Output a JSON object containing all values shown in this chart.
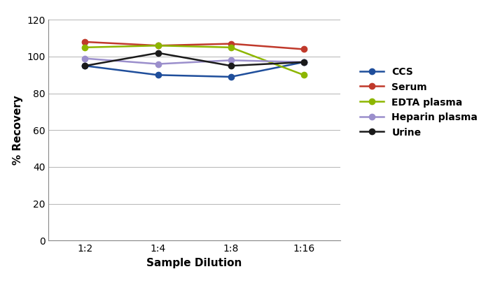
{
  "xlabel": "Sample Dilution",
  "ylabel": "% Recovery",
  "x_labels": [
    "1:2",
    "1:4",
    "1:8",
    "1:16"
  ],
  "x_positions": [
    0,
    1,
    2,
    3
  ],
  "series": [
    {
      "name": "CCS",
      "color": "#1F4E9B",
      "values": [
        95,
        90,
        89,
        97
      ]
    },
    {
      "name": "Serum",
      "color": "#C0392B",
      "values": [
        108,
        106,
        107,
        104
      ]
    },
    {
      "name": "EDTA plasma",
      "color": "#8DB600",
      "values": [
        105,
        106,
        105,
        90
      ]
    },
    {
      "name": "Heparin plasma",
      "color": "#9B8FCC",
      "values": [
        99,
        96,
        98,
        97
      ]
    },
    {
      "name": "Urine",
      "color": "#1A1A1A",
      "values": [
        95,
        102,
        95,
        97
      ]
    }
  ],
  "ylim": [
    0,
    120
  ],
  "yticks": [
    0,
    20,
    40,
    60,
    80,
    100,
    120
  ],
  "background_color": "#ffffff",
  "plot_bg_color": "#ffffff",
  "grid_color": "#bbbbbb",
  "marker": "o",
  "marker_size": 6,
  "linewidth": 1.8,
  "legend_fontsize": 10,
  "axis_label_fontsize": 11,
  "tick_fontsize": 10
}
